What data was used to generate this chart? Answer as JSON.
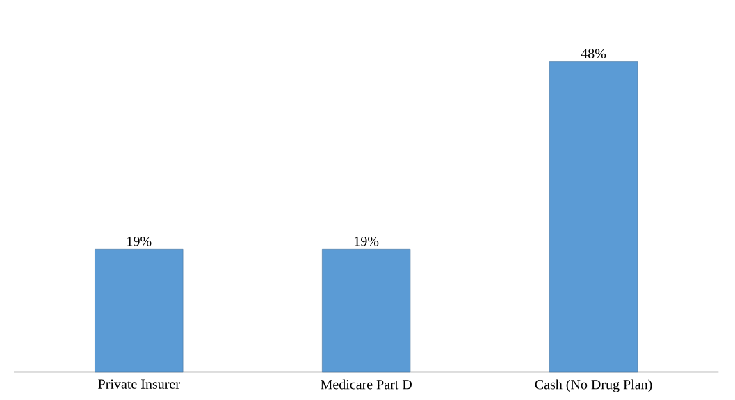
{
  "chart_data": {
    "type": "bar",
    "categories": [
      "Private Insurer",
      "Medicare Part D",
      "Cash (No Drug Plan)"
    ],
    "values": [
      19,
      19,
      48
    ],
    "value_labels": [
      "19%",
      "19%",
      "48%"
    ],
    "color": "#5b9bd5"
  }
}
